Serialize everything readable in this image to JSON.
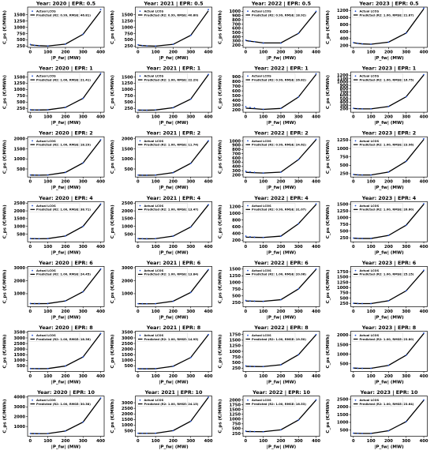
{
  "chart_data": {
    "type": "line",
    "subplot_title_template": "Year: {year} | EPR: {epr}",
    "years": [
      "2020",
      "2021",
      "2022",
      "2023"
    ],
    "eprs": [
      "0.5",
      "1",
      "2",
      "4",
      "6",
      "8",
      "10"
    ],
    "xlabel": "|P_fw| (MW)",
    "ylabel": "C_ps (€/MWh)",
    "xlim": [
      -15,
      420
    ],
    "xticks": [
      0,
      100,
      200,
      300,
      400
    ],
    "legend": {
      "placement": "upper-left",
      "actual_label": "Actual LCOS",
      "predicted_template": "Predicted (R2: {r2}, RMSE: {rmse})"
    },
    "colors": {
      "actual": "#1f4fd6",
      "predicted": "#000000"
    },
    "x": [
      1,
      25,
      50,
      100,
      200,
      300,
      400
    ],
    "panels": [
      {
        "year": "2020",
        "epr": "0.5",
        "r2": "0.99",
        "rmse": "46.81",
        "ylim": [
          200,
          1800
        ],
        "yticks": [
          250,
          500,
          750,
          1000,
          1250,
          1500
        ],
        "actual": [
          315,
          280,
          265,
          255,
          330,
          720,
          1700
        ],
        "predicted": [
          300,
          282,
          268,
          255,
          330,
          720,
          1640
        ]
      },
      {
        "year": "2021",
        "epr": "0.5",
        "r2": "0.99",
        "rmse": "40.80",
        "ylim": [
          200,
          1800
        ],
        "yticks": [
          250,
          500,
          750,
          1000,
          1250,
          1500
        ],
        "actual": [
          300,
          270,
          258,
          250,
          320,
          680,
          1700
        ],
        "predicted": [
          290,
          272,
          262,
          250,
          320,
          680,
          1650
        ]
      },
      {
        "year": "2022",
        "epr": "0.5",
        "r2": "0.99",
        "rmse": "18.92",
        "ylim": [
          150,
          1100
        ],
        "yticks": [
          200,
          300,
          400,
          500,
          600,
          700,
          800,
          900,
          1000
        ],
        "actual": [
          320,
          300,
          285,
          250,
          250,
          480,
          1000
        ],
        "predicted": [
          310,
          295,
          282,
          255,
          255,
          480,
          990
        ]
      },
      {
        "year": "2023",
        "epr": "0.5",
        "r2": "1.00",
        "rmse": "21.87",
        "ylim": [
          150,
          1300
        ],
        "yticks": [
          200,
          400,
          600,
          800,
          1000,
          1200
        ],
        "actual": [
          285,
          265,
          252,
          240,
          300,
          560,
          1270
        ],
        "predicted": [
          282,
          262,
          250,
          240,
          300,
          560,
          1250
        ]
      },
      {
        "year": "2020",
        "epr": "1",
        "r2": "1.00",
        "rmse": "21.41",
        "ylim": [
          100,
          1700
        ],
        "yticks": [
          250,
          500,
          750,
          1000,
          1250,
          1500
        ],
        "actual": [
          195,
          190,
          188,
          195,
          290,
          650,
          1640
        ],
        "predicted": [
          192,
          190,
          188,
          195,
          290,
          650,
          1620
        ]
      },
      {
        "year": "2021",
        "epr": "1",
        "r2": "1.00",
        "rmse": "22.29",
        "ylim": [
          100,
          1700
        ],
        "yticks": [
          250,
          500,
          750,
          1000,
          1250,
          1500
        ],
        "actual": [
          185,
          182,
          180,
          188,
          280,
          620,
          1600
        ],
        "predicted": [
          183,
          181,
          180,
          188,
          280,
          620,
          1590
        ]
      },
      {
        "year": "2022",
        "epr": "1",
        "r2": "0.99",
        "rmse": "26.82",
        "ylim": [
          150,
          1000
        ],
        "yticks": [
          200,
          300,
          400,
          500,
          600,
          700,
          800,
          900
        ],
        "actual": [
          265,
          250,
          240,
          210,
          230,
          470,
          960
        ],
        "predicted": [
          235,
          230,
          225,
          210,
          230,
          470,
          945
        ]
      },
      {
        "year": "2023",
        "epr": "1",
        "r2": "1.00",
        "rmse": "16.75",
        "ylim": [
          100,
          1300
        ],
        "yticks": [
          200,
          300,
          400,
          500,
          600,
          700,
          800,
          900,
          1000,
          1100,
          1200
        ],
        "actual": [
          215,
          205,
          200,
          200,
          270,
          560,
          1220
        ],
        "predicted": [
          212,
          204,
          200,
          200,
          270,
          560,
          1210
        ]
      },
      {
        "year": "2020",
        "epr": "2",
        "r2": "1.00",
        "rmse": "18.29",
        "ylim": [
          100,
          2100
        ],
        "yticks": [
          500,
          1000,
          1500,
          2000
        ],
        "actual": [
          200,
          195,
          192,
          200,
          330,
          800,
          1950
        ],
        "predicted": [
          198,
          194,
          192,
          200,
          330,
          800,
          1930
        ]
      },
      {
        "year": "2021",
        "epr": "2",
        "r2": "1.00",
        "rmse": "11.74",
        "ylim": [
          100,
          2100
        ],
        "yticks": [
          500,
          1000,
          1500,
          2000
        ],
        "actual": [
          195,
          190,
          188,
          195,
          320,
          780,
          1900
        ],
        "predicted": [
          193,
          189,
          188,
          195,
          320,
          780,
          1890
        ]
      },
      {
        "year": "2022",
        "epr": "2",
        "r2": "0.99",
        "rmse": "24.62",
        "ylim": [
          150,
          1100
        ],
        "yticks": [
          200,
          300,
          400,
          500,
          600,
          700,
          800,
          900,
          1000
        ],
        "actual": [
          285,
          270,
          260,
          245,
          265,
          560,
          1040
        ],
        "predicted": [
          262,
          257,
          252,
          245,
          265,
          560,
          1030
        ]
      },
      {
        "year": "2023",
        "epr": "2",
        "r2": "1.00",
        "rmse": "23.96",
        "ylim": [
          150,
          1350
        ],
        "yticks": [
          250,
          500,
          750,
          1000,
          1250
        ],
        "actual": [
          225,
          215,
          210,
          210,
          300,
          620,
          1290
        ],
        "predicted": [
          222,
          214,
          210,
          210,
          300,
          620,
          1270
        ]
      },
      {
        "year": "2020",
        "epr": "4",
        "r2": "1.00",
        "rmse": "38.71",
        "ylim": [
          0,
          2600
        ],
        "yticks": [
          500,
          1000,
          1500,
          2000,
          2500
        ],
        "actual": [
          210,
          205,
          200,
          210,
          380,
          1000,
          2450
        ],
        "predicted": [
          208,
          204,
          200,
          210,
          380,
          1000,
          2420
        ]
      },
      {
        "year": "2021",
        "epr": "4",
        "r2": "1.00",
        "rmse": "13.47",
        "ylim": [
          0,
          2600
        ],
        "yticks": [
          500,
          1000,
          1500,
          2000,
          2500
        ],
        "actual": [
          205,
          200,
          198,
          205,
          370,
          960,
          2400
        ],
        "predicted": [
          203,
          199,
          198,
          205,
          370,
          960,
          2390
        ]
      },
      {
        "year": "2022",
        "epr": "4",
        "r2": "0.99",
        "rmse": "31.07",
        "ylim": [
          150,
          1350
        ],
        "yticks": [
          200,
          400,
          600,
          800,
          1000,
          1200
        ],
        "actual": [
          320,
          300,
          290,
          280,
          320,
          690,
          1280
        ],
        "predicted": [
          290,
          287,
          285,
          280,
          320,
          690,
          1260
        ]
      },
      {
        "year": "2023",
        "epr": "4",
        "r2": "1.00",
        "rmse": "26.60",
        "ylim": [
          100,
          1600
        ],
        "yticks": [
          250,
          500,
          750,
          1000,
          1250,
          1500
        ],
        "actual": [
          240,
          230,
          225,
          225,
          340,
          720,
          1520
        ],
        "predicted": [
          236,
          228,
          225,
          225,
          340,
          720,
          1500
        ]
      },
      {
        "year": "2020",
        "epr": "6",
        "r2": "1.00",
        "rmse": "24.45",
        "ylim": [
          0,
          3100
        ],
        "yticks": [
          1000,
          2000,
          3000
        ],
        "actual": [
          240,
          235,
          232,
          240,
          440,
          1150,
          2900
        ],
        "predicted": [
          238,
          234,
          232,
          240,
          440,
          1150,
          2880
        ]
      },
      {
        "year": "2021",
        "epr": "6",
        "r2": "1.00",
        "rmse": "13.84",
        "ylim": [
          0,
          3100
        ],
        "yticks": [
          1000,
          2000,
          3000
        ],
        "actual": [
          230,
          225,
          222,
          230,
          420,
          1100,
          2850
        ],
        "predicted": [
          228,
          224,
          222,
          230,
          420,
          1100,
          2840
        ]
      },
      {
        "year": "2022",
        "epr": "6",
        "r2": "1.00",
        "rmse": "20.06",
        "ylim": [
          100,
          1600
        ],
        "yticks": [
          250,
          500,
          750,
          1000,
          1250,
          1500
        ],
        "actual": [
          330,
          315,
          305,
          300,
          360,
          760,
          1500
        ],
        "predicted": [
          310,
          306,
          303,
          300,
          360,
          760,
          1490
        ]
      },
      {
        "year": "2023",
        "epr": "6",
        "r2": "1.00",
        "rmse": "25.15",
        "ylim": [
          100,
          2000
        ],
        "yticks": [
          250,
          500,
          750,
          1000,
          1250,
          1500,
          1750
        ],
        "actual": [
          260,
          250,
          245,
          245,
          380,
          850,
          1820
        ],
        "predicted": [
          257,
          248,
          245,
          245,
          380,
          850,
          1800
        ]
      },
      {
        "year": "2020",
        "epr": "8",
        "r2": "1.00",
        "rmse": "18.36",
        "ylim": [
          0,
          3600
        ],
        "yticks": [
          500,
          1000,
          1500,
          2000,
          2500,
          3000,
          3500
        ],
        "actual": [
          260,
          255,
          252,
          262,
          490,
          1300,
          3400
        ],
        "predicted": [
          258,
          254,
          252,
          262,
          490,
          1300,
          3380
        ]
      },
      {
        "year": "2021",
        "epr": "8",
        "r2": "1.00",
        "rmse": "14.95",
        "ylim": [
          0,
          3600
        ],
        "yticks": [
          500,
          1000,
          1500,
          2000,
          2500,
          3000,
          3500
        ],
        "actual": [
          250,
          245,
          242,
          250,
          470,
          1250,
          3300
        ],
        "predicted": [
          248,
          244,
          242,
          250,
          470,
          1250,
          3290
        ]
      },
      {
        "year": "2022",
        "epr": "8",
        "r2": "1.00",
        "rmse": "19.50",
        "ylim": [
          100,
          1900
        ],
        "yticks": [
          250,
          500,
          750,
          1000,
          1250,
          1500,
          1750
        ],
        "actual": [
          350,
          335,
          325,
          320,
          400,
          850,
          1750
        ],
        "predicted": [
          332,
          327,
          323,
          320,
          400,
          850,
          1740
        ]
      },
      {
        "year": "2023",
        "epr": "8",
        "r2": "1.00",
        "rmse": "23.80",
        "ylim": [
          100,
          2200
        ],
        "yticks": [
          500,
          1000,
          1500,
          2000
        ],
        "actual": [
          280,
          270,
          265,
          265,
          420,
          950,
          2100
        ],
        "predicted": [
          277,
          268,
          265,
          265,
          420,
          950,
          2080
        ]
      },
      {
        "year": "2020",
        "epr": "10",
        "r2": "1.00",
        "rmse": "30.38",
        "ylim": [
          0,
          4100
        ],
        "yticks": [
          1000,
          2000,
          3000,
          4000
        ],
        "actual": [
          280,
          275,
          272,
          282,
          540,
          1450,
          3900
        ],
        "predicted": [
          278,
          274,
          272,
          282,
          540,
          1450,
          3870
        ]
      },
      {
        "year": "2021",
        "epr": "10",
        "r2": "1.00",
        "rmse": "24.15",
        "ylim": [
          0,
          3600
        ],
        "yticks": [
          500,
          1000,
          1500,
          2000,
          2500,
          3000
        ],
        "actual": [
          270,
          265,
          262,
          270,
          510,
          1350,
          3500
        ],
        "predicted": [
          268,
          264,
          262,
          270,
          510,
          1350,
          3480
        ]
      },
      {
        "year": "2022",
        "epr": "10",
        "r2": "1.00",
        "rmse": "16.53",
        "ylim": [
          100,
          2200
        ],
        "yticks": [
          250,
          500,
          750,
          1000,
          1250,
          1500,
          1750,
          2000
        ],
        "actual": [
          370,
          355,
          345,
          340,
          440,
          950,
          2000
        ],
        "predicted": [
          352,
          348,
          345,
          340,
          440,
          950,
          1990
        ]
      },
      {
        "year": "2023",
        "epr": "10",
        "r2": "1.00",
        "rmse": "23.64",
        "ylim": [
          100,
          2700
        ],
        "yticks": [
          500,
          1000,
          1500,
          2000,
          2500
        ],
        "actual": [
          300,
          290,
          285,
          285,
          460,
          1050,
          2450
        ],
        "predicted": [
          297,
          288,
          285,
          285,
          460,
          1050,
          2430
        ]
      }
    ]
  }
}
